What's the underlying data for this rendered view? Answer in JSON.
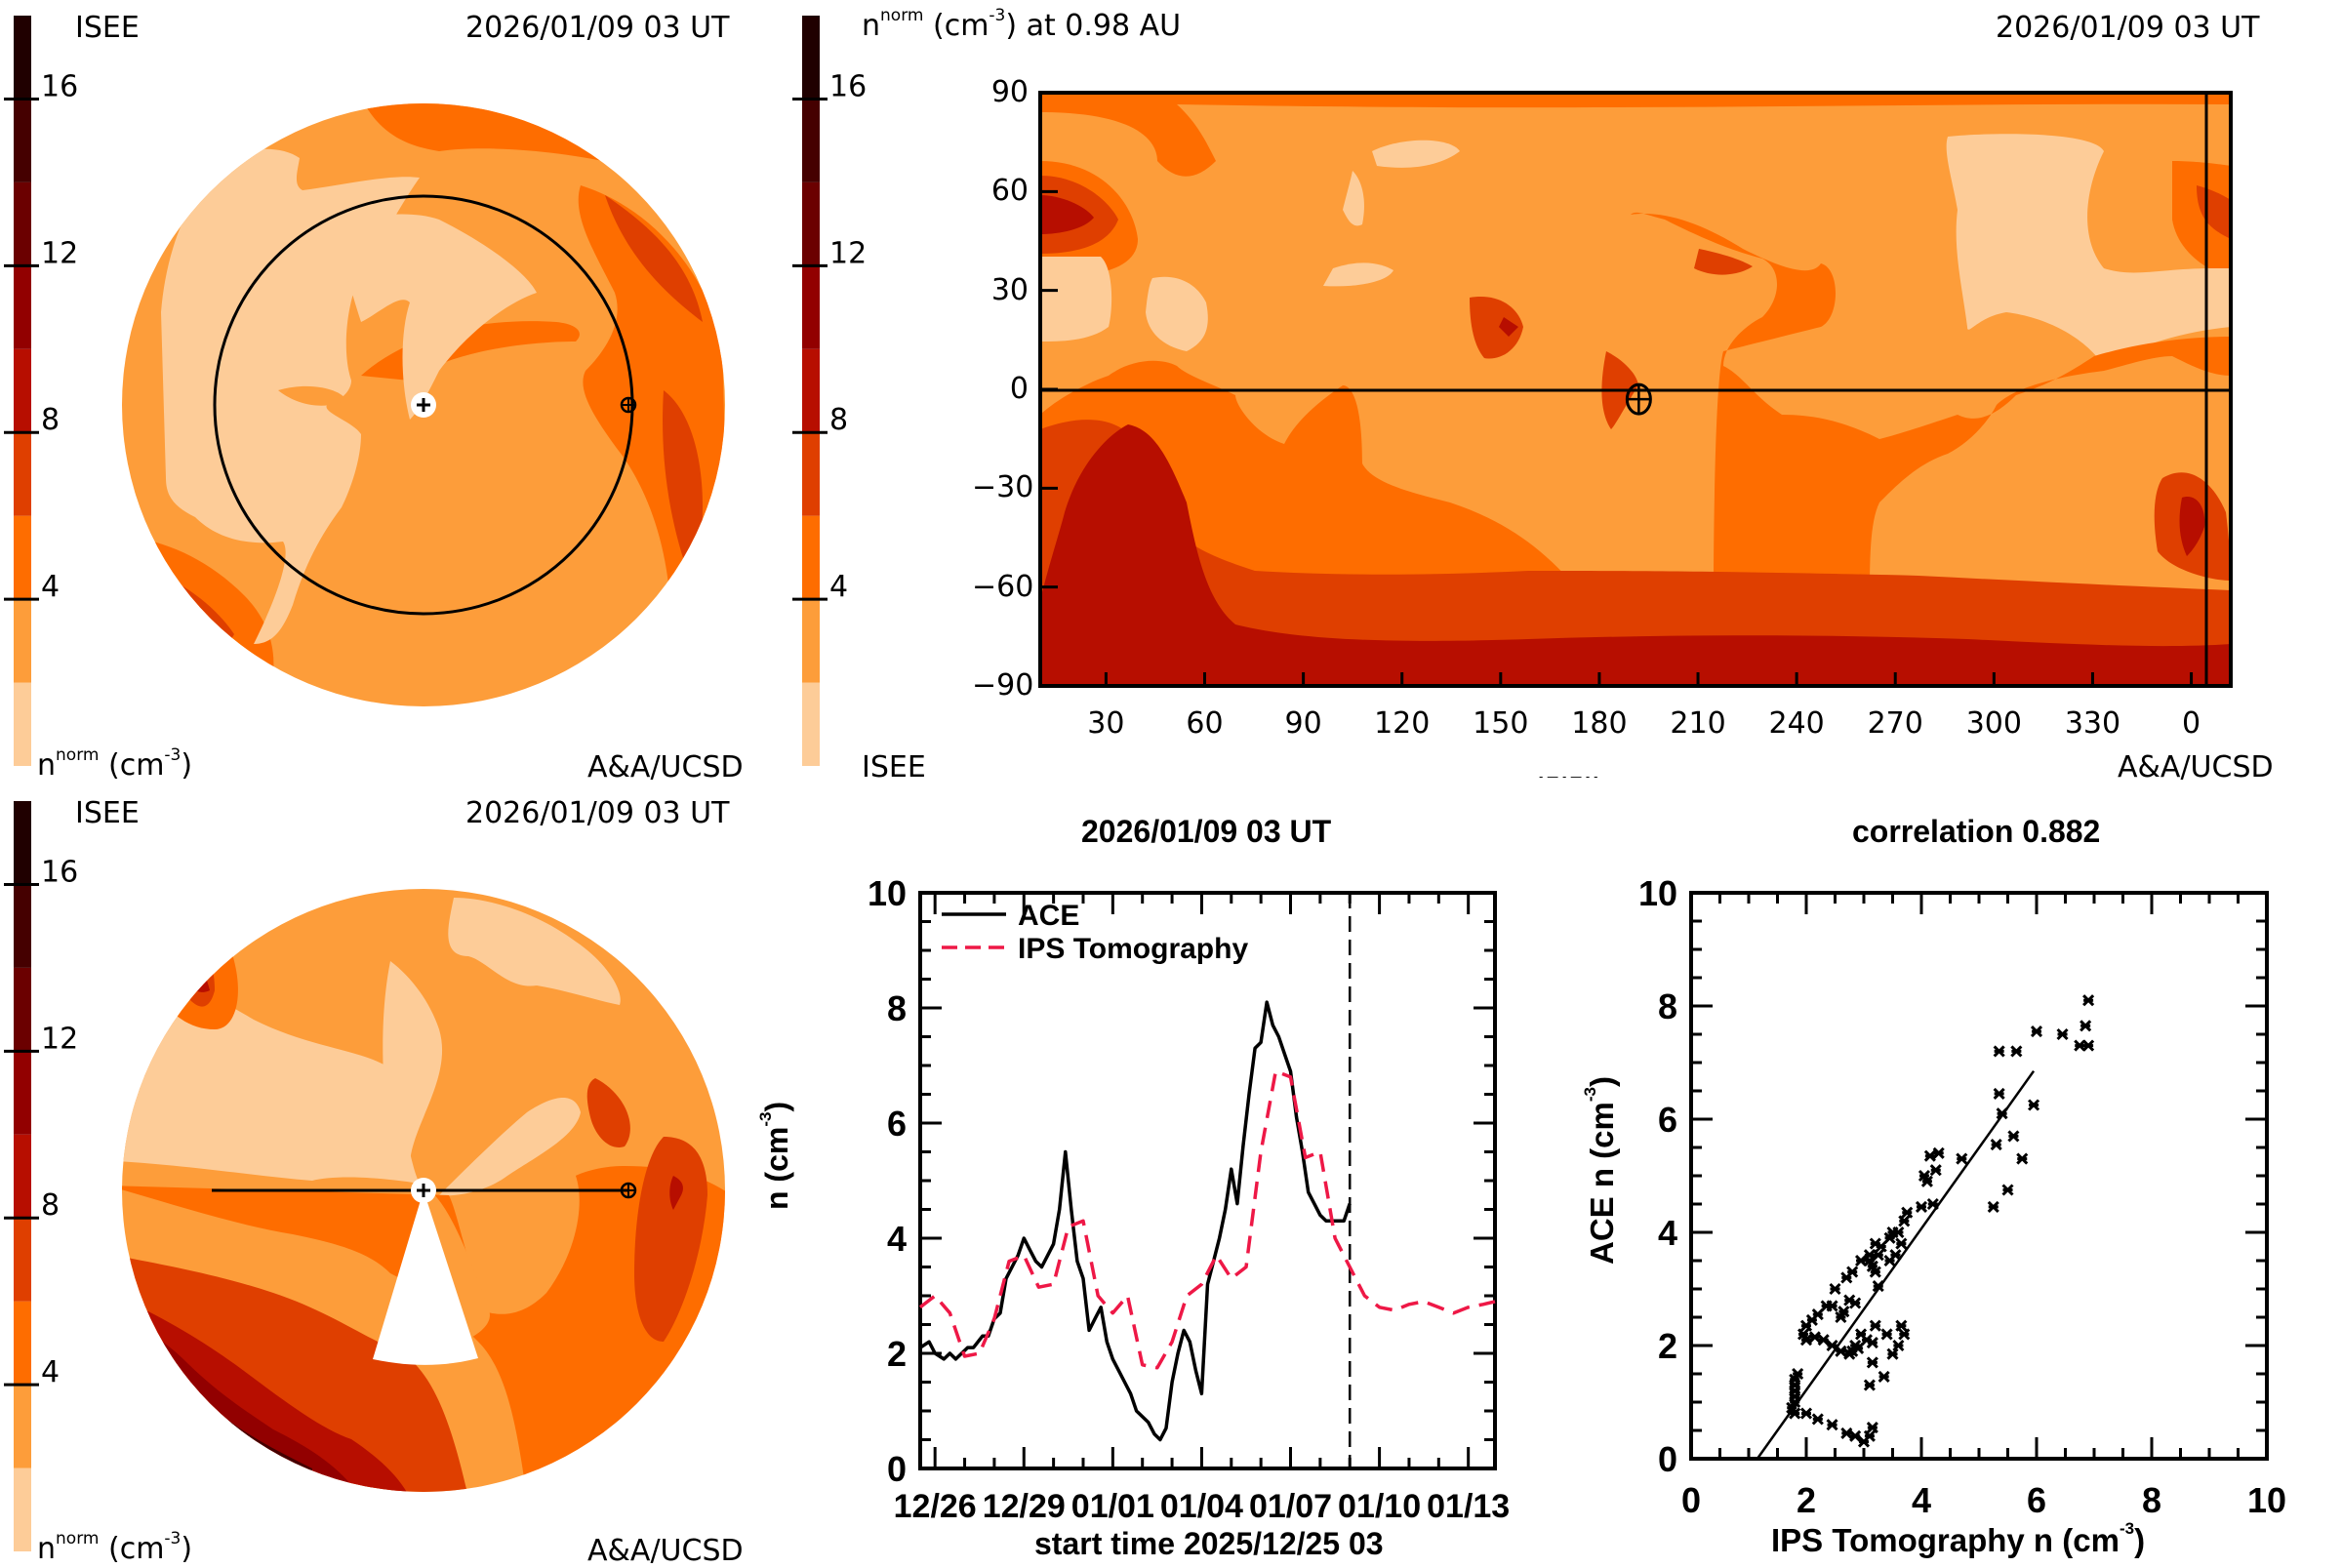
{
  "colorscale": {
    "levels": [
      0,
      2,
      4,
      6,
      8,
      10,
      12,
      14,
      16,
      18
    ],
    "colors": [
      "#fdcc98",
      "#fd9d3a",
      "#fe6d00",
      "#df3f00",
      "#b70e00",
      "#920000",
      "#6b0000",
      "#450000",
      "#200000"
    ],
    "tick_values": [
      "16",
      "12",
      "8",
      "4"
    ],
    "unit_label_n": "n",
    "unit_label_sup": "norm",
    "unit_label_rest": "(cm",
    "unit_label_exp": "-3",
    "unit_label_close": ")"
  },
  "panel_top_left": {
    "source_label": "ISEE",
    "timestamp": "2026/01/09 03 UT",
    "credit": "A&A/UCSD",
    "view": "ecliptic plane view (polar)"
  },
  "panel_top_right": {
    "title_n": "n",
    "title_sup": "norm",
    "title_rest": "(cm",
    "title_exp": "-3",
    "title_close": ") at 0.98 AU",
    "timestamp": "2026/01/09 03 UT",
    "source_label": "ISEE",
    "credit": "A&A/UCSD",
    "y_ticks": [
      "90",
      "60",
      "30",
      "0",
      "−30",
      "−60",
      "−90"
    ],
    "x_ticks": [
      "30",
      "60",
      "90",
      "120",
      "150",
      "180",
      "210",
      "240",
      "270",
      "300",
      "330",
      "0"
    ],
    "clipped_text": "- —   - — - -",
    "earth_longitude": 192,
    "earth_latitude": -3
  },
  "panel_bottom_left": {
    "source_label": "ISEE",
    "timestamp": "2026/01/09 03 UT",
    "credit": "A&A/UCSD",
    "view": "meridional cut view"
  },
  "chart_data": [
    {
      "type": "line",
      "title": "2026/01/09 03 UT",
      "xlabel": "start time 2025/12/25 03",
      "ylabel": "n (cm-3)",
      "ylabel_main": "n (cm",
      "ylabel_exp": "-3",
      "ylabel_close": ")",
      "xlim_days": [
        0.5,
        19.9
      ],
      "ylim": [
        0,
        10
      ],
      "x_ticks": [
        {
          "day": 1,
          "label": "12/26"
        },
        {
          "day": 4,
          "label": "12/29"
        },
        {
          "day": 7,
          "label": "01/01"
        },
        {
          "day": 10,
          "label": "01/04"
        },
        {
          "day": 13,
          "label": "01/07"
        },
        {
          "day": 16,
          "label": "01/10"
        },
        {
          "day": 19,
          "label": "01/13"
        }
      ],
      "y_ticks": [
        "0",
        "2",
        "4",
        "6",
        "8",
        "10"
      ],
      "now_marker_day": 15.0,
      "legend": [
        {
          "name": "ACE",
          "style": "solid",
          "color": "#000000"
        },
        {
          "name": "IPS Tomography",
          "style": "dashed",
          "color": "#ee1846"
        }
      ],
      "series": [
        {
          "name": "ACE",
          "color": "#000000",
          "x": [
            0.5,
            0.8,
            1.0,
            1.3,
            1.5,
            1.7,
            1.9,
            2.1,
            2.3,
            2.6,
            2.8,
            3.0,
            3.2,
            3.4,
            3.6,
            3.8,
            4.0,
            4.2,
            4.4,
            4.6,
            4.8,
            5.0,
            5.2,
            5.4,
            5.6,
            5.8,
            6.0,
            6.2,
            6.4,
            6.6,
            6.8,
            7.0,
            7.2,
            7.4,
            7.6,
            7.8,
            8.0,
            8.2,
            8.4,
            8.6,
            8.8,
            9.0,
            9.2,
            9.4,
            9.6,
            9.8,
            10.0,
            10.2,
            10.4,
            10.6,
            10.8,
            11.0,
            11.2,
            11.4,
            11.6,
            11.8,
            12.0,
            12.2,
            12.4,
            12.6,
            12.8,
            13.0,
            13.2,
            13.4,
            13.6,
            13.8,
            14.0,
            14.2,
            14.4,
            14.6,
            14.8,
            15.0
          ],
          "y": [
            2.1,
            2.2,
            2.0,
            1.9,
            2.0,
            1.9,
            2.0,
            2.1,
            2.1,
            2.3,
            2.3,
            2.6,
            2.7,
            3.3,
            3.5,
            3.7,
            4.0,
            3.8,
            3.6,
            3.5,
            3.7,
            3.9,
            4.5,
            5.5,
            4.5,
            3.6,
            3.3,
            2.4,
            2.6,
            2.8,
            2.2,
            1.9,
            1.7,
            1.5,
            1.3,
            1.0,
            0.9,
            0.8,
            0.6,
            0.5,
            0.7,
            1.5,
            2.0,
            2.4,
            2.2,
            1.7,
            1.3,
            3.2,
            3.6,
            4.0,
            4.5,
            5.2,
            4.6,
            5.6,
            6.5,
            7.3,
            7.4,
            8.1,
            7.7,
            7.5,
            7.2,
            6.9,
            6.1,
            5.5,
            4.8,
            4.6,
            4.4,
            4.3,
            4.3,
            4.3,
            4.3,
            4.6
          ]
        },
        {
          "name": "IPS Tomography",
          "color": "#ee1846",
          "x": [
            0.5,
            1.0,
            1.5,
            2.0,
            2.5,
            3.0,
            3.5,
            4.0,
            4.5,
            5.0,
            5.5,
            6.0,
            6.5,
            7.0,
            7.5,
            8.0,
            8.5,
            9.0,
            9.5,
            10.0,
            10.5,
            11.0,
            11.5,
            12.0,
            12.5,
            13.0,
            13.5,
            14.0,
            14.5,
            15.0,
            15.5,
            16.0,
            16.5,
            17.0,
            17.5,
            18.0,
            18.5,
            19.0,
            19.5,
            19.9
          ],
          "y": [
            2.8,
            3.0,
            2.7,
            1.95,
            2.0,
            2.6,
            3.6,
            3.7,
            3.15,
            3.2,
            4.2,
            4.3,
            3.0,
            2.7,
            3.0,
            1.8,
            1.75,
            2.2,
            3.0,
            3.2,
            3.7,
            3.3,
            3.5,
            5.5,
            6.9,
            6.8,
            5.4,
            5.5,
            4.0,
            3.5,
            3.0,
            2.8,
            2.75,
            2.85,
            2.9,
            2.8,
            2.7,
            2.8,
            2.85,
            2.9
          ]
        }
      ]
    },
    {
      "type": "scatter",
      "title": "correlation 0.882",
      "xlabel": "IPS Tomography n (cm-3)",
      "xlabel_main": "IPS Tomography n (cm",
      "xlabel_exp": "-3",
      "xlabel_close": ")",
      "ylabel": "ACE n (cm-3)",
      "ylabel_main": "ACE n (cm",
      "ylabel_exp": "-3",
      "ylabel_close": ")",
      "xlim": [
        0,
        10
      ],
      "ylim": [
        0,
        10
      ],
      "x_ticks": [
        "0",
        "2",
        "4",
        "6",
        "8",
        "10"
      ],
      "y_ticks": [
        "0",
        "2",
        "4",
        "6",
        "8",
        "10"
      ],
      "correlation": 0.882,
      "fit_line": {
        "x": [
          1.15,
          5.95
        ],
        "y": [
          0.0,
          6.85
        ]
      },
      "points": [
        [
          1.8,
          1.0
        ],
        [
          1.8,
          1.1
        ],
        [
          1.8,
          1.2
        ],
        [
          1.8,
          1.3
        ],
        [
          1.8,
          1.4
        ],
        [
          1.85,
          1.5
        ],
        [
          1.75,
          0.9
        ],
        [
          1.8,
          0.8
        ],
        [
          2.0,
          0.8
        ],
        [
          2.2,
          0.7
        ],
        [
          2.45,
          0.6
        ],
        [
          2.7,
          0.45
        ],
        [
          2.85,
          0.4
        ],
        [
          3.0,
          0.3
        ],
        [
          3.1,
          0.4
        ],
        [
          3.15,
          0.55
        ],
        [
          3.1,
          1.3
        ],
        [
          3.15,
          1.7
        ],
        [
          3.35,
          1.45
        ],
        [
          3.5,
          1.85
        ],
        [
          3.6,
          2.0
        ],
        [
          3.7,
          2.2
        ],
        [
          3.65,
          2.35
        ],
        [
          3.4,
          2.2
        ],
        [
          3.2,
          2.35
        ],
        [
          3.15,
          2.05
        ],
        [
          3.05,
          2.1
        ],
        [
          2.95,
          2.2
        ],
        [
          2.85,
          2.0
        ],
        [
          2.8,
          1.9
        ],
        [
          2.75,
          1.85
        ],
        [
          2.9,
          1.95
        ],
        [
          2.6,
          1.9
        ],
        [
          2.45,
          2.0
        ],
        [
          2.3,
          2.1
        ],
        [
          2.15,
          2.15
        ],
        [
          2.0,
          2.1
        ],
        [
          1.95,
          2.2
        ],
        [
          2.0,
          2.35
        ],
        [
          2.1,
          2.45
        ],
        [
          2.2,
          2.55
        ],
        [
          2.35,
          2.7
        ],
        [
          2.45,
          2.7
        ],
        [
          2.6,
          2.5
        ],
        [
          2.65,
          2.6
        ],
        [
          2.75,
          2.8
        ],
        [
          2.85,
          2.75
        ],
        [
          2.5,
          3.0
        ],
        [
          2.7,
          3.2
        ],
        [
          2.8,
          3.3
        ],
        [
          2.95,
          3.5
        ],
        [
          3.1,
          3.5
        ],
        [
          3.15,
          3.4
        ],
        [
          3.2,
          3.3
        ],
        [
          3.25,
          3.6
        ],
        [
          3.3,
          3.75
        ],
        [
          3.2,
          3.8
        ],
        [
          3.1,
          3.6
        ],
        [
          3.45,
          3.9
        ],
        [
          3.5,
          4.0
        ],
        [
          3.6,
          4.0
        ],
        [
          3.65,
          3.8
        ],
        [
          3.55,
          3.6
        ],
        [
          3.45,
          3.5
        ],
        [
          3.25,
          3.05
        ],
        [
          3.7,
          4.2
        ],
        [
          3.75,
          4.35
        ],
        [
          4.0,
          4.45
        ],
        [
          4.2,
          4.5
        ],
        [
          4.05,
          5.0
        ],
        [
          4.25,
          5.1
        ],
        [
          4.7,
          5.3
        ],
        [
          5.75,
          5.3
        ],
        [
          5.25,
          4.45
        ],
        [
          5.5,
          4.75
        ],
        [
          4.3,
          5.4
        ],
        [
          4.1,
          4.9
        ],
        [
          4.15,
          5.35
        ],
        [
          5.3,
          5.55
        ],
        [
          5.6,
          5.7
        ],
        [
          5.4,
          6.1
        ],
        [
          5.35,
          6.45
        ],
        [
          5.95,
          6.25
        ],
        [
          5.35,
          7.2
        ],
        [
          5.65,
          7.2
        ],
        [
          6.0,
          7.55
        ],
        [
          6.45,
          7.5
        ],
        [
          6.75,
          7.3
        ],
        [
          6.9,
          7.3
        ],
        [
          6.85,
          7.65
        ],
        [
          6.9,
          8.1
        ]
      ]
    }
  ]
}
